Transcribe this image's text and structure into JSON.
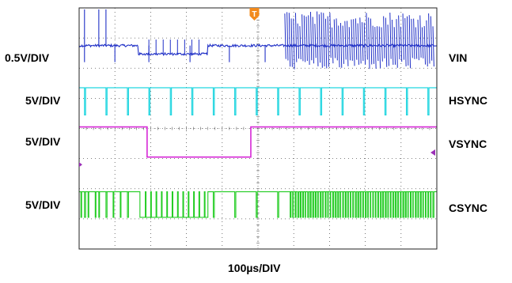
{
  "chart_data": {
    "type": "line",
    "subtype": "oscilloscope-capture",
    "grid": "dotted 10x8 divisions",
    "x_unit": "divisions",
    "xlim": [
      0,
      10
    ],
    "ylim": [
      0,
      8
    ],
    "time_scale": "100µs/DIV",
    "trigger_marker": "T",
    "trigger_div": 4.9,
    "series": [
      {
        "name": "VIN",
        "scale": "0.5V/DIV",
        "color": "#1f2fc6",
        "baseline_div": 6.75,
        "amplitude_div": 1.0,
        "vsync_low_amplitude_div": 0.25,
        "hsync_pulse_times_div": [
          0.15,
          1.0,
          1.95,
          3.1,
          4.2,
          5.2
        ],
        "burst_region_div": [
          5.75,
          9.95
        ],
        "note_level": "flat trace with negative sync pulses, dips low during vsync"
      },
      {
        "name": "HSYNC",
        "scale": "5V/DIV",
        "color": "#22d6e0",
        "high_div": 5.35,
        "low_div": 4.45,
        "pulse_times_div": [
          0.15,
          0.75,
          1.35,
          1.95,
          2.55,
          3.15,
          3.75,
          4.35,
          4.95,
          5.55,
          6.15,
          6.75,
          7.35,
          7.95,
          8.55,
          9.15,
          9.75
        ]
      },
      {
        "name": "VSYNC",
        "scale": "5V/DIV",
        "color": "#d628d6",
        "high_div": 4.05,
        "low_div": 3.05,
        "low_interval_div": [
          1.9,
          4.8
        ]
      },
      {
        "name": "CSYNC",
        "scale": "5V/DIV",
        "color": "#22cc22",
        "high_div": 1.9,
        "low_div": 1.05,
        "equalizing_region_div": [
          1.7,
          3.6
        ],
        "serration_region_div": [
          1.95,
          3.5
        ],
        "burst_region_div": [
          5.9,
          9.95
        ]
      }
    ],
    "left_labels": [
      "0.5V/DIV",
      "5V/DIV",
      "5V/DIV",
      "5V/DIV"
    ],
    "right_labels": [
      "VIN",
      "HSYNC",
      "VSYNC",
      "CSYNC"
    ],
    "xlabel": "100µs/DIV"
  },
  "trigger_color": "#f28a1c",
  "level_marker_color": "#9b2fb7"
}
